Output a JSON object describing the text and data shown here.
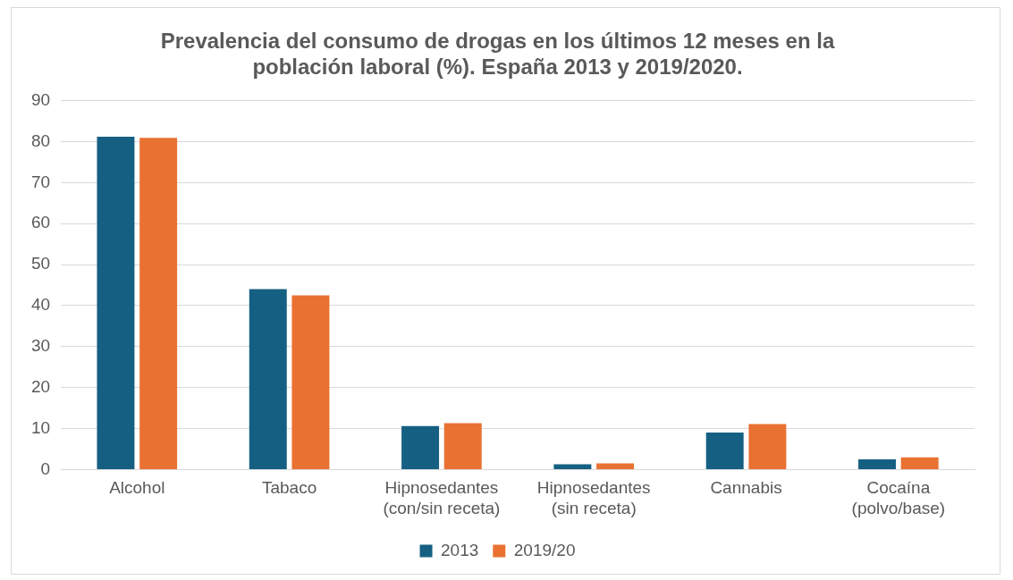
{
  "chart_data": {
    "type": "bar",
    "title": "Prevalencia del consumo de drogas en los últimos 12 meses en la población laboral (%). España 2013 y 2019/2020.",
    "categories": [
      "Alcohol",
      "Tabaco",
      "Hipnosedantes (con/sin receta)",
      "Hipnosedantes (sin receta)",
      "Cannabis",
      "Cocaína (polvo/base)"
    ],
    "series": [
      {
        "name": "2013",
        "color": "#156082",
        "values": [
          81.2,
          44,
          10.6,
          1.3,
          9,
          2.5
        ]
      },
      {
        "name": "2019/20",
        "color": "#e97132",
        "values": [
          80.9,
          42.5,
          11.3,
          1.5,
          11.1,
          3
        ]
      }
    ],
    "ylim": [
      0,
      90
    ],
    "yticks": [
      0,
      10,
      20,
      30,
      40,
      50,
      60,
      70,
      80,
      90
    ],
    "grid": "y",
    "legend": "bottom"
  }
}
